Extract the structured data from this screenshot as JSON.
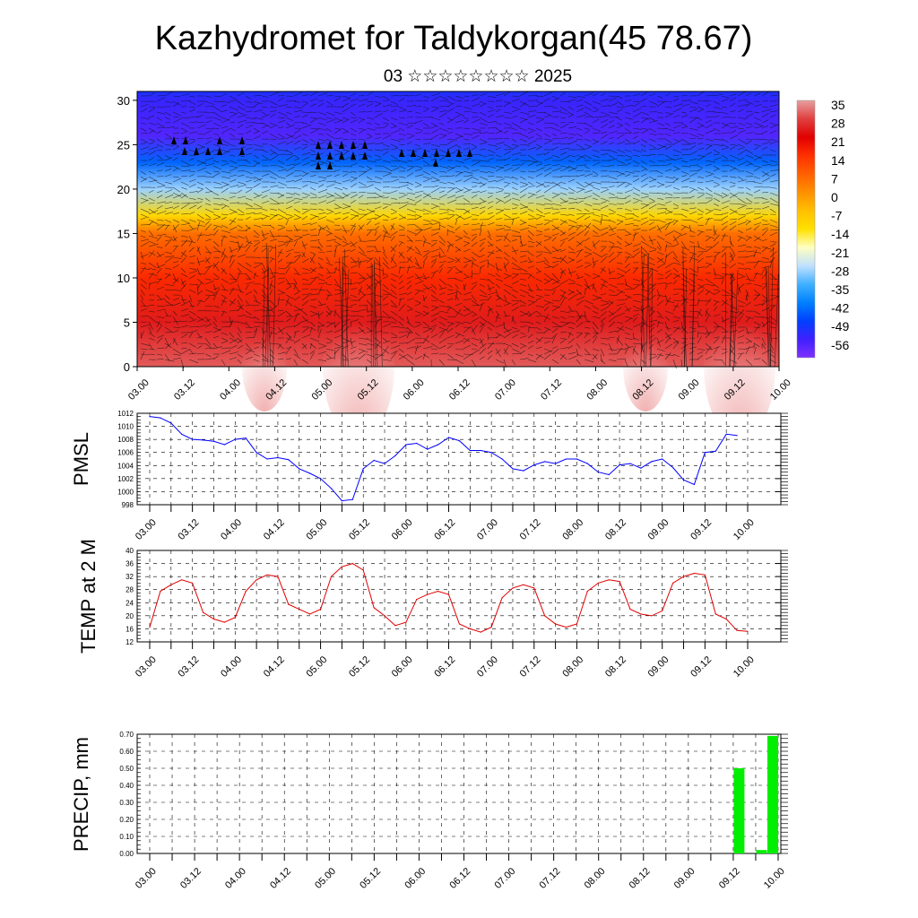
{
  "figure": {
    "title": "Kazhydromet for Taldykorgan(45 78.67)",
    "subtitle": "03 ☆☆☆☆☆☆☆☆ 2025"
  },
  "time_labels": [
    "03.00",
    "03.12",
    "04.00",
    "04.12",
    "05.00",
    "05.12",
    "06.00",
    "06.12",
    "07.00",
    "07.12",
    "08.00",
    "08.12",
    "09.00",
    "09.12",
    "10.00"
  ],
  "chart_data": [
    {
      "type": "heatmap",
      "name": "cross-section",
      "y_ticks": [
        0,
        5,
        10,
        15,
        20,
        25,
        30
      ],
      "ylim": [
        0,
        31
      ],
      "colorbar": {
        "labels": [
          "35",
          "28",
          "21",
          "14",
          "7",
          "0",
          "-7",
          "-14",
          "-21",
          "-28",
          "-35",
          "-42",
          "-49",
          "-56"
        ],
        "colors": [
          "#e8a0a0",
          "#e04040",
          "#e00000",
          "#ff3000",
          "#ff6000",
          "#ff9000",
          "#ffc000",
          "#ffe000",
          "#ffffc0",
          "#c0e0ff",
          "#40b0ff",
          "#0080ff",
          "#0040ff",
          "#4020ff",
          "#8030ff"
        ]
      },
      "temperature_profile": {
        "levels": [
          0,
          5,
          10,
          15,
          17,
          20,
          23,
          26,
          30,
          31
        ],
        "values": [
          30,
          24,
          15,
          5,
          -12,
          -30,
          -45,
          -58,
          -55,
          -52
        ]
      }
    },
    {
      "type": "line",
      "name": "pmsl",
      "ylabel": "PMSL",
      "ylim": [
        998,
        1012
      ],
      "y_ticks": [
        998,
        1000,
        1002,
        1004,
        1006,
        1008,
        1010,
        1012
      ],
      "color": "#0000ff",
      "x_step_hours": 3,
      "values": [
        1011.5,
        1011.3,
        1010.5,
        1008.8,
        1008.0,
        1007.9,
        1007.7,
        1007.2,
        1008.0,
        1008.2,
        1006.0,
        1005.0,
        1005.2,
        1004.9,
        1003.5,
        1002.8,
        1002.0,
        1000.5,
        998.6,
        998.8,
        1003.5,
        1004.8,
        1004.3,
        1005.5,
        1007.2,
        1007.4,
        1006.5,
        1007.2,
        1008.3,
        1007.8,
        1006.3,
        1006.3,
        1006.0,
        1005.0,
        1003.5,
        1003.2,
        1004.1,
        1004.6,
        1004.3,
        1005.0,
        1005.0,
        1004.3,
        1003.0,
        1002.6,
        1004.1,
        1004.3,
        1003.6,
        1004.6,
        1005.0,
        1003.7,
        1001.8,
        1001.1,
        1006.0,
        1006.2,
        1008.8,
        1008.6
      ]
    },
    {
      "type": "line",
      "name": "temperature",
      "ylabel": "TEMP at 2 M",
      "ylim": [
        12,
        40
      ],
      "y_ticks": [
        12,
        16,
        20,
        24,
        28,
        32,
        36,
        40
      ],
      "color": "#e00000",
      "x_step_hours": 3,
      "values": [
        16.5,
        27.5,
        29.5,
        31.0,
        30.0,
        21.0,
        19.0,
        18.0,
        19.5,
        27.5,
        31.0,
        32.5,
        32.0,
        23.5,
        22.0,
        20.5,
        22.0,
        32.0,
        35.0,
        36.0,
        34.0,
        22.5,
        20.0,
        17.0,
        18.0,
        25.0,
        26.5,
        27.5,
        26.5,
        17.5,
        16.0,
        15.0,
        16.5,
        25.5,
        28.5,
        29.5,
        28.5,
        20.0,
        17.5,
        16.5,
        17.5,
        27.5,
        30.0,
        31.0,
        30.5,
        22.0,
        20.5,
        20.0,
        21.5,
        30.0,
        32.0,
        33.0,
        32.5,
        20.5,
        19.0,
        15.5,
        15.2
      ]
    },
    {
      "type": "bar",
      "name": "precipitation",
      "ylabel": "PRECIP, mm",
      "ylim": [
        0,
        0.7
      ],
      "y_ticks": [
        "0.00",
        "0.10",
        "0.20",
        "0.30",
        "0.40",
        "0.50",
        "0.60",
        "0.70"
      ],
      "color": "#00ee00",
      "bar_values": [
        {
          "x_hours": 159,
          "value": 0.5
        },
        {
          "x_hours": 165,
          "value": 0.02
        },
        {
          "x_hours": 168,
          "value": 0.69
        }
      ]
    }
  ]
}
